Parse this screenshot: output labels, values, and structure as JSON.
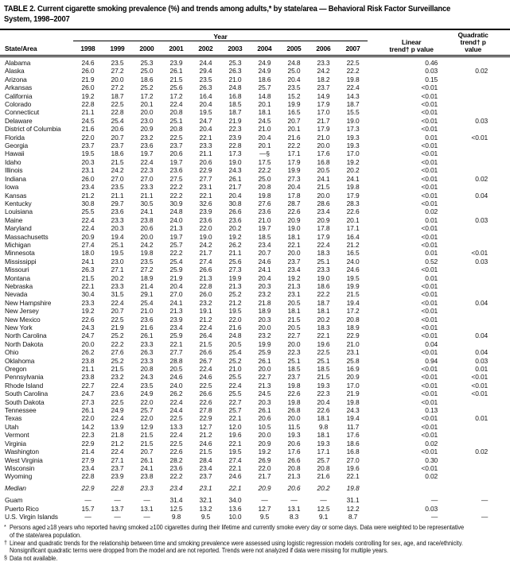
{
  "title": {
    "line1": "TABLE 2. Current cigarette smoking prevalence (%) and trends among adults,* by state/area — Behavioral Risk Factor Surveillance",
    "line2": "System, 1998–2007"
  },
  "table": {
    "group_header": "Year",
    "state_header": "State/Area",
    "year_headers": [
      "1998",
      "1999",
      "2000",
      "2001",
      "2002",
      "2003",
      "2004",
      "2005",
      "2006",
      "2007"
    ],
    "linear_header": {
      "line1": "Linear",
      "line2": "trend† p value"
    },
    "quadratic_header": {
      "line1": "Quadratic",
      "line2": "trend† p value"
    },
    "rows": [
      {
        "area": "Alabama",
        "values": [
          "24.6",
          "23.5",
          "25.3",
          "23.9",
          "24.4",
          "25.3",
          "24.9",
          "24.8",
          "23.3",
          "22.5"
        ],
        "linear": "0.46",
        "quadratic": ""
      },
      {
        "area": "Alaska",
        "values": [
          "26.0",
          "27.2",
          "25.0",
          "26.1",
          "29.4",
          "26.3",
          "24.9",
          "25.0",
          "24.2",
          "22.2"
        ],
        "linear": "0.03",
        "quadratic": "0.02"
      },
      {
        "area": "Arizona",
        "values": [
          "21.9",
          "20.0",
          "18.6",
          "21.5",
          "23.5",
          "21.0",
          "18.6",
          "20.4",
          "18.2",
          "19.8"
        ],
        "linear": "0.15",
        "quadratic": ""
      },
      {
        "area": "Arkansas",
        "values": [
          "26.0",
          "27.2",
          "25.2",
          "25.6",
          "26.3",
          "24.8",
          "25.7",
          "23.5",
          "23.7",
          "22.4"
        ],
        "linear": "<0.01",
        "quadratic": ""
      },
      {
        "area": "California",
        "values": [
          "19.2",
          "18.7",
          "17.2",
          "17.2",
          "16.4",
          "16.8",
          "14.8",
          "15.2",
          "14.9",
          "14.3"
        ],
        "linear": "<0.01",
        "quadratic": ""
      },
      {
        "area": "Colorado",
        "values": [
          "22.8",
          "22.5",
          "20.1",
          "22.4",
          "20.4",
          "18.5",
          "20.1",
          "19.9",
          "17.9",
          "18.7"
        ],
        "linear": "<0.01",
        "quadratic": ""
      },
      {
        "area": "Connecticut",
        "values": [
          "21.1",
          "22.8",
          "20.0",
          "20.8",
          "19.5",
          "18.7",
          "18.1",
          "16.5",
          "17.0",
          "15.5"
        ],
        "linear": "<0.01",
        "quadratic": ""
      },
      {
        "area": "Delaware",
        "values": [
          "24.5",
          "25.4",
          "23.0",
          "25.1",
          "24.7",
          "21.9",
          "24.5",
          "20.7",
          "21.7",
          "19.0"
        ],
        "linear": "<0.01",
        "quadratic": "0.03"
      },
      {
        "area": "District of Columbia",
        "values": [
          "21.6",
          "20.6",
          "20.9",
          "20.8",
          "20.4",
          "22.3",
          "21.0",
          "20.1",
          "17.9",
          "17.3"
        ],
        "linear": "<0.01",
        "quadratic": ""
      },
      {
        "area": "Florida",
        "values": [
          "22.0",
          "20.7",
          "23.2",
          "22.5",
          "22.1",
          "23.9",
          "20.4",
          "21.6",
          "21.0",
          "19.3"
        ],
        "linear": "0.01",
        "quadratic": "<0.01"
      },
      {
        "area": "Georgia",
        "values": [
          "23.7",
          "23.7",
          "23.6",
          "23.7",
          "23.3",
          "22.8",
          "20.1",
          "22.2",
          "20.0",
          "19.3"
        ],
        "linear": "<0.01",
        "quadratic": ""
      },
      {
        "area": "Hawaii",
        "values": [
          "19.5",
          "18.6",
          "19.7",
          "20.6",
          "21.1",
          "17.3",
          "—§",
          "17.1",
          "17.6",
          "17.0"
        ],
        "linear": "<0.01",
        "quadratic": ""
      },
      {
        "area": "Idaho",
        "values": [
          "20.3",
          "21.5",
          "22.4",
          "19.7",
          "20.6",
          "19.0",
          "17.5",
          "17.9",
          "16.8",
          "19.2"
        ],
        "linear": "<0.01",
        "quadratic": ""
      },
      {
        "area": "Illinois",
        "values": [
          "23.1",
          "24.2",
          "22.3",
          "23.6",
          "22.9",
          "24.3",
          "22.2",
          "19.9",
          "20.5",
          "20.2"
        ],
        "linear": "<0.01",
        "quadratic": ""
      },
      {
        "area": "Indiana",
        "values": [
          "26.0",
          "27.0",
          "27.0",
          "27.5",
          "27.7",
          "26.1",
          "25.0",
          "27.3",
          "24.1",
          "24.1"
        ],
        "linear": "<0.01",
        "quadratic": "0.02"
      },
      {
        "area": "Iowa",
        "values": [
          "23.4",
          "23.5",
          "23.3",
          "22.2",
          "23.1",
          "21.7",
          "20.8",
          "20.4",
          "21.5",
          "19.8"
        ],
        "linear": "<0.01",
        "quadratic": ""
      },
      {
        "area": "Kansas",
        "values": [
          "21.2",
          "21.1",
          "21.1",
          "22.2",
          "22.1",
          "20.4",
          "19.8",
          "17.8",
          "20.0",
          "17.9"
        ],
        "linear": "<0.01",
        "quadratic": "0.04"
      },
      {
        "area": "Kentucky",
        "values": [
          "30.8",
          "29.7",
          "30.5",
          "30.9",
          "32.6",
          "30.8",
          "27.6",
          "28.7",
          "28.6",
          "28.3"
        ],
        "linear": "<0.01",
        "quadratic": ""
      },
      {
        "area": "Louisiana",
        "values": [
          "25.5",
          "23.6",
          "24.1",
          "24.8",
          "23.9",
          "26.6",
          "23.6",
          "22.6",
          "23.4",
          "22.6"
        ],
        "linear": "0.02",
        "quadratic": ""
      },
      {
        "area": "Maine",
        "values": [
          "22.4",
          "23.3",
          "23.8",
          "24.0",
          "23.6",
          "23.6",
          "21.0",
          "20.9",
          "20.9",
          "20.1"
        ],
        "linear": "0.01",
        "quadratic": "0.03"
      },
      {
        "area": "Maryland",
        "values": [
          "22.4",
          "20.3",
          "20.6",
          "21.3",
          "22.0",
          "20.2",
          "19.7",
          "19.0",
          "17.8",
          "17.1"
        ],
        "linear": "<0.01",
        "quadratic": ""
      },
      {
        "area": "Massachusetts",
        "values": [
          "20.9",
          "19.4",
          "20.0",
          "19.7",
          "19.0",
          "19.2",
          "18.5",
          "18.1",
          "17.9",
          "16.4"
        ],
        "linear": "<0.01",
        "quadratic": ""
      },
      {
        "area": "Michigan",
        "values": [
          "27.4",
          "25.1",
          "24.2",
          "25.7",
          "24.2",
          "26.2",
          "23.4",
          "22.1",
          "22.4",
          "21.2"
        ],
        "linear": "<0.01",
        "quadratic": ""
      },
      {
        "area": "Minnesota",
        "values": [
          "18.0",
          "19.5",
          "19.8",
          "22.2",
          "21.7",
          "21.1",
          "20.7",
          "20.0",
          "18.3",
          "16.5"
        ],
        "linear": "0.01",
        "quadratic": "<0.01"
      },
      {
        "area": "Mississippi",
        "values": [
          "24.1",
          "23.0",
          "23.5",
          "25.4",
          "27.4",
          "25.6",
          "24.6",
          "23.7",
          "25.1",
          "24.0"
        ],
        "linear": "0.52",
        "quadratic": "0.03"
      },
      {
        "area": "Missouri",
        "values": [
          "26.3",
          "27.1",
          "27.2",
          "25.9",
          "26.6",
          "27.3",
          "24.1",
          "23.4",
          "23.3",
          "24.6"
        ],
        "linear": "<0.01",
        "quadratic": ""
      },
      {
        "area": "Montana",
        "values": [
          "21.5",
          "20.2",
          "18.9",
          "21.9",
          "21.3",
          "19.9",
          "20.4",
          "19.2",
          "19.0",
          "19.5"
        ],
        "linear": "0.01",
        "quadratic": ""
      },
      {
        "area": "Nebraska",
        "values": [
          "22.1",
          "23.3",
          "21.4",
          "20.4",
          "22.8",
          "21.3",
          "20.3",
          "21.3",
          "18.6",
          "19.9"
        ],
        "linear": "<0.01",
        "quadratic": ""
      },
      {
        "area": "Nevada",
        "values": [
          "30.4",
          "31.5",
          "29.1",
          "27.0",
          "26.0",
          "25.2",
          "23.2",
          "23.1",
          "22.2",
          "21.5"
        ],
        "linear": "<0.01",
        "quadratic": ""
      },
      {
        "area": "New Hampshire",
        "values": [
          "23.3",
          "22.4",
          "25.4",
          "24.1",
          "23.2",
          "21.2",
          "21.8",
          "20.5",
          "18.7",
          "19.4"
        ],
        "linear": "<0.01",
        "quadratic": "0.04"
      },
      {
        "area": "New Jersey",
        "values": [
          "19.2",
          "20.7",
          "21.0",
          "21.3",
          "19.1",
          "19.5",
          "18.9",
          "18.1",
          "18.1",
          "17.2"
        ],
        "linear": "<0.01",
        "quadratic": ""
      },
      {
        "area": "New Mexico",
        "values": [
          "22.6",
          "22.5",
          "23.6",
          "23.9",
          "21.2",
          "22.0",
          "20.3",
          "21.5",
          "20.2",
          "20.8"
        ],
        "linear": "<0.01",
        "quadratic": ""
      },
      {
        "area": "New York",
        "values": [
          "24.3",
          "21.9",
          "21.6",
          "23.4",
          "22.4",
          "21.6",
          "20.0",
          "20.5",
          "18.3",
          "18.9"
        ],
        "linear": "<0.01",
        "quadratic": ""
      },
      {
        "area": "North Carolina",
        "values": [
          "24.7",
          "25.2",
          "26.1",
          "25.9",
          "26.4",
          "24.8",
          "23.2",
          "22.7",
          "22.1",
          "22.9"
        ],
        "linear": "<0.01",
        "quadratic": "0.04"
      },
      {
        "area": "North Dakota",
        "values": [
          "20.0",
          "22.2",
          "23.3",
          "22.1",
          "21.5",
          "20.5",
          "19.9",
          "20.0",
          "19.6",
          "21.0"
        ],
        "linear": "0.04",
        "quadratic": ""
      },
      {
        "area": "Ohio",
        "values": [
          "26.2",
          "27.6",
          "26.3",
          "27.7",
          "26.6",
          "25.4",
          "25.9",
          "22.3",
          "22.5",
          "23.1"
        ],
        "linear": "<0.01",
        "quadratic": "0.04"
      },
      {
        "area": "Oklahoma",
        "values": [
          "23.8",
          "25.2",
          "23.3",
          "28.8",
          "26.7",
          "25.2",
          "26.1",
          "25.1",
          "25.1",
          "25.8"
        ],
        "linear": "0.94",
        "quadratic": "0.03"
      },
      {
        "area": "Oregon",
        "values": [
          "21.1",
          "21.5",
          "20.8",
          "20.5",
          "22.4",
          "21.0",
          "20.0",
          "18.5",
          "18.5",
          "16.9"
        ],
        "linear": "<0.01",
        "quadratic": "0.01"
      },
      {
        "area": "Pennsylvania",
        "values": [
          "23.8",
          "23.2",
          "24.3",
          "24.6",
          "24.6",
          "25.5",
          "22.7",
          "23.7",
          "21.5",
          "20.9"
        ],
        "linear": "<0.01",
        "quadratic": "<0.01"
      },
      {
        "area": "Rhode Island",
        "values": [
          "22.7",
          "22.4",
          "23.5",
          "24.0",
          "22.5",
          "22.4",
          "21.3",
          "19.8",
          "19.3",
          "17.0"
        ],
        "linear": "<0.01",
        "quadratic": "<0.01"
      },
      {
        "area": "South Carolina",
        "values": [
          "24.7",
          "23.6",
          "24.9",
          "26.2",
          "26.6",
          "25.5",
          "24.5",
          "22.6",
          "22.3",
          "21.9"
        ],
        "linear": "<0.01",
        "quadratic": "<0.01"
      },
      {
        "area": "South Dakota",
        "values": [
          "27.3",
          "22.5",
          "22.0",
          "22.4",
          "22.6",
          "22.7",
          "20.3",
          "19.8",
          "20.4",
          "19.8"
        ],
        "linear": "<0.01",
        "quadratic": ""
      },
      {
        "area": "Tennessee",
        "values": [
          "26.1",
          "24.9",
          "25.7",
          "24.4",
          "27.8",
          "25.7",
          "26.1",
          "26.8",
          "22.6",
          "24.3"
        ],
        "linear": "0.13",
        "quadratic": ""
      },
      {
        "area": "Texas",
        "values": [
          "22.0",
          "22.4",
          "22.0",
          "22.5",
          "22.9",
          "22.1",
          "20.6",
          "20.0",
          "18.1",
          "19.4"
        ],
        "linear": "<0.01",
        "quadratic": "0.01"
      },
      {
        "area": "Utah",
        "values": [
          "14.2",
          "13.9",
          "12.9",
          "13.3",
          "12.7",
          "12.0",
          "10.5",
          "11.5",
          "9.8",
          "11.7"
        ],
        "linear": "<0.01",
        "quadratic": ""
      },
      {
        "area": "Vermont",
        "values": [
          "22.3",
          "21.8",
          "21.5",
          "22.4",
          "21.2",
          "19.6",
          "20.0",
          "19.3",
          "18.1",
          "17.6"
        ],
        "linear": "<0.01",
        "quadratic": ""
      },
      {
        "area": "Virginia",
        "values": [
          "22.9",
          "21.2",
          "21.5",
          "22.5",
          "24.6",
          "22.1",
          "20.9",
          "20.6",
          "19.3",
          "18.6"
        ],
        "linear": "0.02",
        "quadratic": ""
      },
      {
        "area": "Washington",
        "values": [
          "21.4",
          "22.4",
          "20.7",
          "22.6",
          "21.5",
          "19.5",
          "19.2",
          "17.6",
          "17.1",
          "16.8"
        ],
        "linear": "<0.01",
        "quadratic": "0.02"
      },
      {
        "area": "West Virginia",
        "values": [
          "27.9",
          "27.1",
          "26.1",
          "28.2",
          "28.4",
          "27.4",
          "26.9",
          "26.6",
          "25.7",
          "27.0"
        ],
        "linear": "0.30",
        "quadratic": ""
      },
      {
        "area": "Wisconsin",
        "values": [
          "23.4",
          "23.7",
          "24.1",
          "23.6",
          "23.4",
          "22.1",
          "22.0",
          "20.8",
          "20.8",
          "19.6"
        ],
        "linear": "<0.01",
        "quadratic": ""
      },
      {
        "area": "Wyoming",
        "values": [
          "22.8",
          "23.9",
          "23.8",
          "22.2",
          "23.7",
          "24.6",
          "21.7",
          "21.3",
          "21.6",
          "22.1"
        ],
        "linear": "0.02",
        "quadratic": ""
      },
      {
        "area": "Median",
        "values": [
          "22.9",
          "22.8",
          "23.3",
          "23.4",
          "23.1",
          "22.1",
          "20.9",
          "20.6",
          "20.2",
          "19.8"
        ],
        "linear": "",
        "quadratic": "",
        "style": "median"
      },
      {
        "area": "Guam",
        "values": [
          "—",
          "—",
          "—",
          "31.4",
          "32.1",
          "34.0",
          "—",
          "—",
          "—",
          "31.1"
        ],
        "linear": "—",
        "quadratic": "—",
        "style": "gap"
      },
      {
        "area": "Puerto Rico",
        "values": [
          "15.7",
          "13.7",
          "13.1",
          "12.5",
          "13.2",
          "13.6",
          "12.7",
          "13.1",
          "12.5",
          "12.2"
        ],
        "linear": "0.03",
        "quadratic": ""
      },
      {
        "area": "U.S. Virgin Islands",
        "values": [
          "—",
          "—",
          "—",
          "9.8",
          "9.5",
          "10.0",
          "9.5",
          "8.3",
          "9.1",
          "8.7"
        ],
        "linear": "—",
        "quadratic": "—"
      }
    ]
  },
  "footnotes": [
    {
      "marker": "*",
      "lines": [
        "Persons aged ≥18 years who reported having smoked ≥100 cigarettes during their lifetime and currently smoke every day or some days. Data were weighted to be representative",
        "of the state/area population."
      ]
    },
    {
      "marker": "†",
      "lines": [
        "Linear and quadratic trends for the relationship between time and smoking prevalence were assessed using logistic regression models controlling for sex, age, and race/ethnicity.",
        "Nonsignificant quadratic terms were dropped from the model and are not reported. Trends were not analyzed if data were missing for multiple years."
      ]
    },
    {
      "marker": "§",
      "lines": [
        "Data not available."
      ]
    }
  ]
}
